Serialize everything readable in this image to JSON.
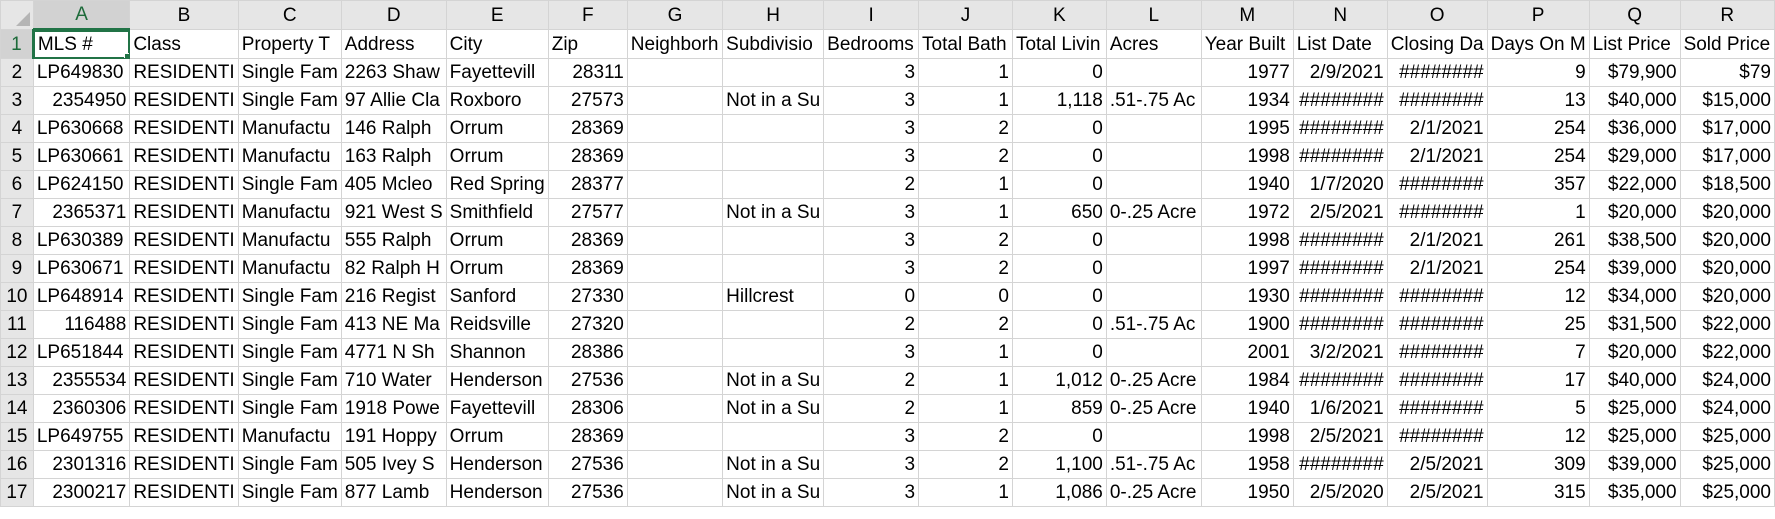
{
  "column_letters": [
    "A",
    "B",
    "C",
    "D",
    "E",
    "F",
    "G",
    "H",
    "I",
    "J",
    "K",
    "L",
    "M",
    "N",
    "O",
    "P",
    "Q",
    "R"
  ],
  "selected_cell": "A1",
  "headers": [
    "MLS #",
    "Class",
    "Property T",
    "Address",
    "City",
    "Zip",
    "Neighborh",
    "Subdivisio",
    "Bedrooms",
    "Total Bath",
    "Total Livin",
    "Acres",
    "Year Built",
    "List Date",
    "Closing Da",
    "Days On M",
    "List Price",
    "Sold Price"
  ],
  "rows": [
    {
      "n": "2",
      "c": [
        "LP649830",
        "RESIDENTI",
        "Single Fam",
        "2263 Shaw",
        "Fayettevill",
        "28311",
        "",
        "",
        "3",
        "1",
        "0",
        "",
        "1977",
        "2/9/2021",
        "########",
        "9",
        "$79,900",
        "$79"
      ]
    },
    {
      "n": "3",
      "c": [
        "2354950",
        "RESIDENTI",
        "Single Fam",
        "97 Allie Cla",
        "Roxboro",
        "27573",
        "",
        "Not in a Su",
        "3",
        "1",
        "1,118",
        ".51-.75 Ac",
        "1934",
        "########",
        "########",
        "13",
        "$40,000",
        "$15,000"
      ]
    },
    {
      "n": "4",
      "c": [
        "LP630668",
        "RESIDENTI",
        "Manufactu",
        "146 Ralph",
        "Orrum",
        "28369",
        "",
        "",
        "3",
        "2",
        "0",
        "",
        "1995",
        "########",
        "2/1/2021",
        "254",
        "$36,000",
        "$17,000"
      ]
    },
    {
      "n": "5",
      "c": [
        "LP630661",
        "RESIDENTI",
        "Manufactu",
        "163 Ralph",
        "Orrum",
        "28369",
        "",
        "",
        "3",
        "2",
        "0",
        "",
        "1998",
        "########",
        "2/1/2021",
        "254",
        "$29,000",
        "$17,000"
      ]
    },
    {
      "n": "6",
      "c": [
        "LP624150",
        "RESIDENTI",
        "Single Fam",
        "405 Mcleo",
        "Red Spring",
        "28377",
        "",
        "",
        "2",
        "1",
        "0",
        "",
        "1940",
        "1/7/2020",
        "########",
        "357",
        "$22,000",
        "$18,500"
      ]
    },
    {
      "n": "7",
      "c": [
        "2365371",
        "RESIDENTI",
        "Manufactu",
        "921 West S",
        "Smithfield",
        "27577",
        "",
        "Not in a Su",
        "3",
        "1",
        "650",
        "0-.25 Acre",
        "1972",
        "2/5/2021",
        "########",
        "1",
        "$20,000",
        "$20,000"
      ]
    },
    {
      "n": "8",
      "c": [
        "LP630389",
        "RESIDENTI",
        "Manufactu",
        "555 Ralph",
        "Orrum",
        "28369",
        "",
        "",
        "3",
        "2",
        "0",
        "",
        "1998",
        "########",
        "2/1/2021",
        "261",
        "$38,500",
        "$20,000"
      ]
    },
    {
      "n": "9",
      "c": [
        "LP630671",
        "RESIDENTI",
        "Manufactu",
        "82 Ralph H",
        "Orrum",
        "28369",
        "",
        "",
        "3",
        "2",
        "0",
        "",
        "1997",
        "########",
        "2/1/2021",
        "254",
        "$39,000",
        "$20,000"
      ]
    },
    {
      "n": "10",
      "c": [
        "LP648914",
        "RESIDENTI",
        "Single Fam",
        "216 Regist",
        "Sanford",
        "27330",
        "",
        "Hillcrest",
        "0",
        "0",
        "0",
        "",
        "1930",
        "########",
        "########",
        "12",
        "$34,000",
        "$20,000"
      ]
    },
    {
      "n": "11",
      "c": [
        "116488",
        "RESIDENTI",
        "Single Fam",
        "413 NE Ma",
        "Reidsville",
        "27320",
        "",
        "",
        "2",
        "2",
        "0",
        ".51-.75 Ac",
        "1900",
        "########",
        "########",
        "25",
        "$31,500",
        "$22,000"
      ]
    },
    {
      "n": "12",
      "c": [
        "LP651844",
        "RESIDENTI",
        "Single Fam",
        "4771 N Sh",
        "Shannon",
        "28386",
        "",
        "",
        "3",
        "1",
        "0",
        "",
        "2001",
        "3/2/2021",
        "########",
        "7",
        "$20,000",
        "$22,000"
      ]
    },
    {
      "n": "13",
      "c": [
        "2355534",
        "RESIDENTI",
        "Single Fam",
        "710 Water",
        "Henderson",
        "27536",
        "",
        "Not in a Su",
        "2",
        "1",
        "1,012",
        "0-.25 Acre",
        "1984",
        "########",
        "########",
        "17",
        "$40,000",
        "$24,000"
      ]
    },
    {
      "n": "14",
      "c": [
        "2360306",
        "RESIDENTI",
        "Single Fam",
        "1918 Powe",
        "Fayettevill",
        "28306",
        "",
        "Not in a Su",
        "2",
        "1",
        "859",
        "0-.25 Acre",
        "1940",
        "1/6/2021",
        "########",
        "5",
        "$25,000",
        "$24,000"
      ]
    },
    {
      "n": "15",
      "c": [
        "LP649755",
        "RESIDENTI",
        "Manufactu",
        "191 Hoppy",
        "Orrum",
        "28369",
        "",
        "",
        "3",
        "2",
        "0",
        "",
        "1998",
        "2/5/2021",
        "########",
        "12",
        "$25,000",
        "$25,000"
      ]
    },
    {
      "n": "16",
      "c": [
        "2301316",
        "RESIDENTI",
        "Single Fam",
        "505 Ivey S",
        "Henderson",
        "27536",
        "",
        "Not in a Su",
        "3",
        "2",
        "1,100",
        ".51-.75 Ac",
        "1958",
        "########",
        "2/5/2021",
        "309",
        "$39,000",
        "$25,000"
      ]
    },
    {
      "n": "17",
      "c": [
        "2300217",
        "RESIDENTI",
        "Single Fam",
        "877 Lamb",
        "Henderson",
        "27536",
        "",
        "Not in a Su",
        "3",
        "1",
        "1,086",
        "0-.25 Acre",
        "1950",
        "2/5/2020",
        "2/5/2021",
        "315",
        "$35,000",
        "$25,000"
      ]
    }
  ]
}
